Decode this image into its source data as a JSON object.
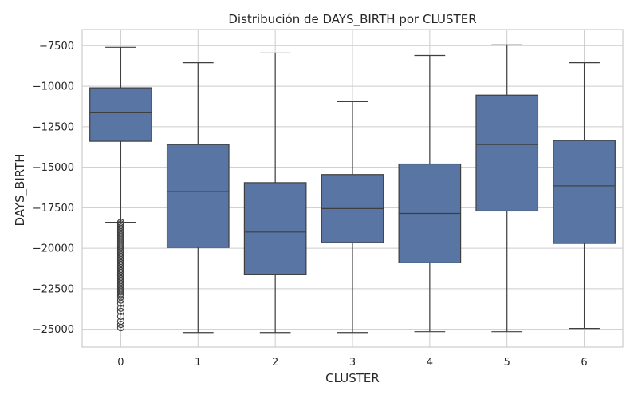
{
  "chart_data": {
    "type": "box",
    "title": "Distribución de DAYS_BIRTH por CLUSTER",
    "xlabel": "CLUSTER",
    "ylabel": "DAYS_BIRTH",
    "ylim": [
      -26100,
      -6500
    ],
    "yticks": [
      -7500,
      -10000,
      -12500,
      -15000,
      -17500,
      -20000,
      -22500,
      -25000
    ],
    "ytick_labels": [
      "−7500",
      "−10000",
      "−12500",
      "−15000",
      "−17500",
      "−20000",
      "−22500",
      "−25000"
    ],
    "grid": true,
    "box_color": "#5875a4",
    "edge_color": "#3f3f3f",
    "categories": [
      "0",
      "1",
      "2",
      "3",
      "4",
      "5",
      "6"
    ],
    "boxes": [
      {
        "category": "0",
        "whisker_low": -18400,
        "q1": -13400,
        "median": -11600,
        "q3": -10100,
        "whisker_high": -7600,
        "outliers": [
          -18400,
          -18500,
          -18600,
          -18700,
          -18800,
          -18900,
          -19000,
          -19100,
          -19200,
          -19300,
          -19400,
          -19500,
          -19600,
          -19700,
          -19800,
          -19900,
          -20000,
          -20100,
          -20200,
          -20300,
          -20400,
          -20500,
          -20600,
          -20700,
          -20800,
          -20900,
          -21000,
          -21100,
          -21200,
          -21300,
          -21400,
          -21500,
          -21600,
          -21700,
          -21800,
          -21900,
          -22000,
          -22100,
          -22200,
          -22300,
          -22400,
          -22500,
          -22600,
          -22700,
          -22800,
          -22900,
          -23000,
          -23200,
          -23400,
          -23700,
          -23900,
          -24200,
          -24500,
          -24700,
          -24900
        ]
      },
      {
        "category": "1",
        "whisker_low": -25200,
        "q1": -19950,
        "median": -16500,
        "q3": -13600,
        "whisker_high": -8550,
        "outliers": []
      },
      {
        "category": "2",
        "whisker_low": -25200,
        "q1": -21600,
        "median": -19000,
        "q3": -15950,
        "whisker_high": -7950,
        "outliers": []
      },
      {
        "category": "3",
        "whisker_low": -25200,
        "q1": -19650,
        "median": -17550,
        "q3": -15450,
        "whisker_high": -10950,
        "outliers": []
      },
      {
        "category": "4",
        "whisker_low": -25150,
        "q1": -20900,
        "median": -17850,
        "q3": -14800,
        "whisker_high": -8100,
        "outliers": []
      },
      {
        "category": "5",
        "whisker_low": -25150,
        "q1": -17700,
        "median": -13600,
        "q3": -10550,
        "whisker_high": -7450,
        "outliers": []
      },
      {
        "category": "6",
        "whisker_low": -24950,
        "q1": -19700,
        "median": -16150,
        "q3": -13350,
        "whisker_high": -8550,
        "outliers": []
      }
    ]
  }
}
